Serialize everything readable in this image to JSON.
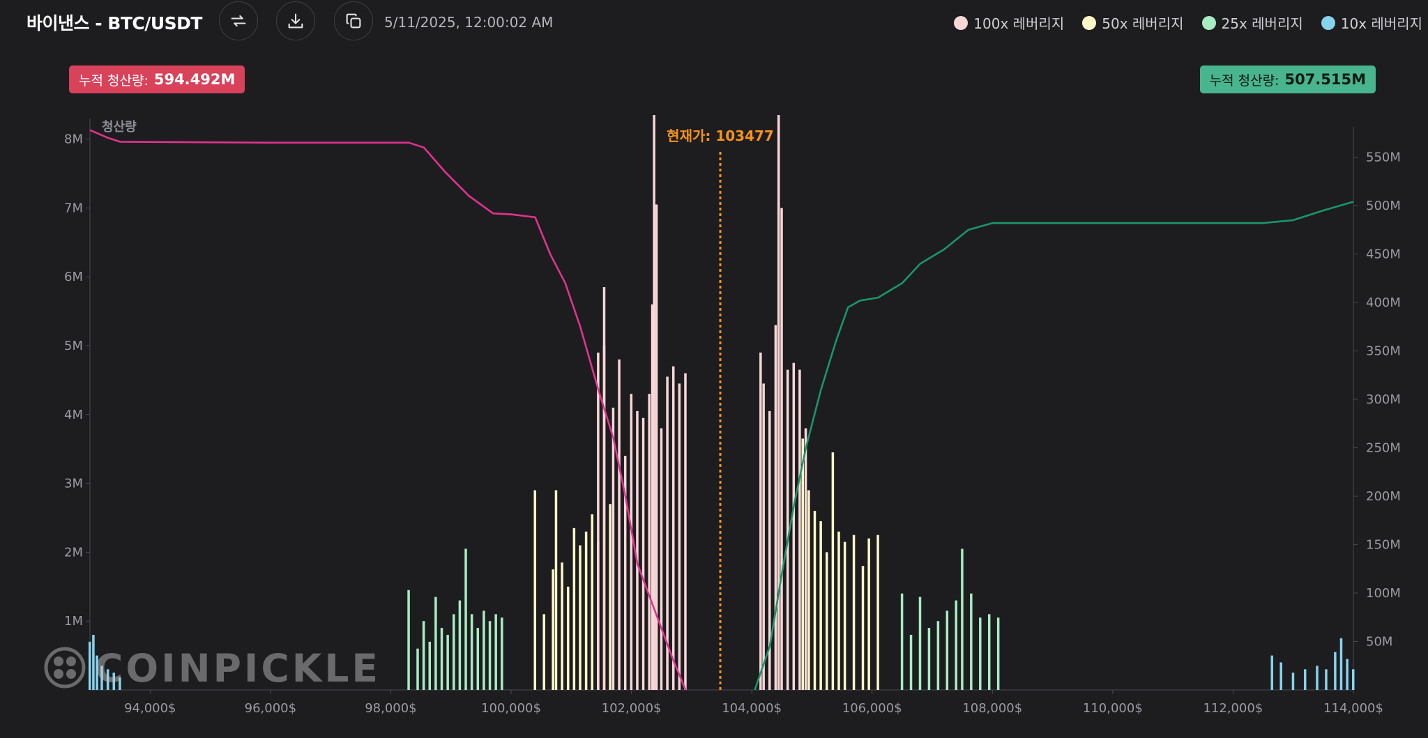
{
  "header": {
    "title": "바이낸스 - BTC/USDT",
    "timestamp": "5/11/2025, 12:00:02 AM",
    "buttons": [
      {
        "icon": "swap-icon"
      },
      {
        "icon": "download-icon"
      },
      {
        "icon": "copy-icon"
      }
    ]
  },
  "legend": [
    {
      "label": "100x 레버리지",
      "color": "#f8d7d7"
    },
    {
      "label": "50x 레버리지",
      "color": "#fbf7c8"
    },
    {
      "label": "25x 레버리지",
      "color": "#a8ecc2"
    },
    {
      "label": "10x 레버리지",
      "color": "#86d3ee"
    }
  ],
  "badges": {
    "short": {
      "label": "누적 청산량:",
      "value": "594.492M"
    },
    "long": {
      "label": "누적 청산량:",
      "value": "507.515M"
    }
  },
  "watermark": "COINPICKLE",
  "chart_data": {
    "type": "bar",
    "ylabel": "청산량",
    "current_price_label": "현재가: 103477",
    "current_price": 103477,
    "x_ticks": [
      "94,000$",
      "96,000$",
      "98,000$",
      "100,000$",
      "102,000$",
      "104,000$",
      "106,000$",
      "108,000$",
      "110,000$",
      "112,000$",
      "114,000$"
    ],
    "x_tick_values": [
      94000,
      96000,
      98000,
      100000,
      102000,
      104000,
      106000,
      108000,
      110000,
      112000,
      114000
    ],
    "xlim": [
      93000,
      114000
    ],
    "y_left_ticks": [
      "1M",
      "2M",
      "3M",
      "4M",
      "5M",
      "6M",
      "7M",
      "8M"
    ],
    "y_left_tick_values": [
      1000000,
      2000000,
      3000000,
      4000000,
      5000000,
      6000000,
      7000000,
      8000000
    ],
    "ylim_left": [
      0,
      8300000
    ],
    "y_right_ticks": [
      "50M",
      "100M",
      "150M",
      "200M",
      "250M",
      "300M",
      "350M",
      "400M",
      "450M",
      "500M",
      "550M"
    ],
    "y_right_tick_values": [
      50000000,
      100000000,
      150000000,
      200000000,
      250000000,
      300000000,
      350000000,
      400000000,
      450000000,
      500000000,
      550000000
    ],
    "ylim_right": [
      0,
      590000000
    ],
    "grid": false,
    "leverage_bars": [
      {
        "leverage": "10x",
        "color": "#86d3ee",
        "bars": [
          {
            "x": 93000,
            "y": 700000
          },
          {
            "x": 93060,
            "y": 800000
          },
          {
            "x": 93120,
            "y": 500000
          },
          {
            "x": 93200,
            "y": 350000
          },
          {
            "x": 93300,
            "y": 300000
          },
          {
            "x": 93400,
            "y": 250000
          },
          {
            "x": 93500,
            "y": 180000
          },
          {
            "x": 112650,
            "y": 500000
          },
          {
            "x": 112800,
            "y": 400000
          },
          {
            "x": 113000,
            "y": 250000
          },
          {
            "x": 113200,
            "y": 300000
          },
          {
            "x": 113400,
            "y": 350000
          },
          {
            "x": 113550,
            "y": 300000
          },
          {
            "x": 113700,
            "y": 550000
          },
          {
            "x": 113800,
            "y": 750000
          },
          {
            "x": 113900,
            "y": 450000
          },
          {
            "x": 114000,
            "y": 300000
          }
        ]
      },
      {
        "leverage": "25x",
        "color": "#a8ecc2",
        "bars": [
          {
            "x": 98300,
            "y": 1450000
          },
          {
            "x": 98450,
            "y": 600000
          },
          {
            "x": 98550,
            "y": 1000000
          },
          {
            "x": 98650,
            "y": 700000
          },
          {
            "x": 98750,
            "y": 1350000
          },
          {
            "x": 98850,
            "y": 900000
          },
          {
            "x": 98950,
            "y": 800000
          },
          {
            "x": 99050,
            "y": 1100000
          },
          {
            "x": 99150,
            "y": 1300000
          },
          {
            "x": 99250,
            "y": 2050000
          },
          {
            "x": 99350,
            "y": 1100000
          },
          {
            "x": 99450,
            "y": 900000
          },
          {
            "x": 99550,
            "y": 1150000
          },
          {
            "x": 99650,
            "y": 1000000
          },
          {
            "x": 99750,
            "y": 1100000
          },
          {
            "x": 99850,
            "y": 1050000
          },
          {
            "x": 106500,
            "y": 1400000
          },
          {
            "x": 106650,
            "y": 800000
          },
          {
            "x": 106800,
            "y": 1350000
          },
          {
            "x": 106950,
            "y": 900000
          },
          {
            "x": 107100,
            "y": 1000000
          },
          {
            "x": 107250,
            "y": 1150000
          },
          {
            "x": 107400,
            "y": 1300000
          },
          {
            "x": 107500,
            "y": 2050000
          },
          {
            "x": 107650,
            "y": 1400000
          },
          {
            "x": 107800,
            "y": 1050000
          },
          {
            "x": 107950,
            "y": 1100000
          },
          {
            "x": 108100,
            "y": 1050000
          }
        ]
      },
      {
        "leverage": "50x",
        "color": "#fbf7c8",
        "bars": [
          {
            "x": 100400,
            "y": 2900000
          },
          {
            "x": 100550,
            "y": 1100000
          },
          {
            "x": 100700,
            "y": 1750000
          },
          {
            "x": 100750,
            "y": 2900000
          },
          {
            "x": 100850,
            "y": 1850000
          },
          {
            "x": 100950,
            "y": 1500000
          },
          {
            "x": 101050,
            "y": 2350000
          },
          {
            "x": 101150,
            "y": 2100000
          },
          {
            "x": 101250,
            "y": 2300000
          },
          {
            "x": 101350,
            "y": 2550000
          },
          {
            "x": 101450,
            "y": 2150000
          },
          {
            "x": 101550,
            "y": 5000000
          },
          {
            "x": 101650,
            "y": 2700000
          },
          {
            "x": 104850,
            "y": 3650000
          },
          {
            "x": 104950,
            "y": 2900000
          },
          {
            "x": 105050,
            "y": 2600000
          },
          {
            "x": 105150,
            "y": 2450000
          },
          {
            "x": 105250,
            "y": 2000000
          },
          {
            "x": 105350,
            "y": 3450000
          },
          {
            "x": 105450,
            "y": 2300000
          },
          {
            "x": 105550,
            "y": 2150000
          },
          {
            "x": 105700,
            "y": 2250000
          },
          {
            "x": 105850,
            "y": 1800000
          },
          {
            "x": 105950,
            "y": 2200000
          },
          {
            "x": 106100,
            "y": 2250000
          }
        ]
      },
      {
        "leverage": "100x",
        "color": "#f8d7d7",
        "bars": [
          {
            "x": 101450,
            "y": 4900000
          },
          {
            "x": 101550,
            "y": 5850000
          },
          {
            "x": 101700,
            "y": 4100000
          },
          {
            "x": 101800,
            "y": 4800000
          },
          {
            "x": 101900,
            "y": 3400000
          },
          {
            "x": 102000,
            "y": 4300000
          },
          {
            "x": 102100,
            "y": 4050000
          },
          {
            "x": 102200,
            "y": 3950000
          },
          {
            "x": 102300,
            "y": 4300000
          },
          {
            "x": 102350,
            "y": 5600000
          },
          {
            "x": 102380,
            "y": 8350000
          },
          {
            "x": 102420,
            "y": 7050000
          },
          {
            "x": 102500,
            "y": 3800000
          },
          {
            "x": 102600,
            "y": 4550000
          },
          {
            "x": 102700,
            "y": 4700000
          },
          {
            "x": 102800,
            "y": 4450000
          },
          {
            "x": 102900,
            "y": 4600000
          },
          {
            "x": 104150,
            "y": 4900000
          },
          {
            "x": 104200,
            "y": 4450000
          },
          {
            "x": 104300,
            "y": 4050000
          },
          {
            "x": 104400,
            "y": 5300000
          },
          {
            "x": 104450,
            "y": 8350000
          },
          {
            "x": 104500,
            "y": 7000000
          },
          {
            "x": 104600,
            "y": 4650000
          },
          {
            "x": 104700,
            "y": 4750000
          },
          {
            "x": 104800,
            "y": 4650000
          },
          {
            "x": 104900,
            "y": 3800000
          }
        ]
      }
    ],
    "cumulative_short": {
      "color": "#e0338e",
      "x": [
        93000,
        93300,
        93500,
        96000,
        98300,
        98550,
        98900,
        99300,
        99700,
        100000,
        100400,
        100650,
        100900,
        101150,
        101450,
        101700,
        101900,
        102100,
        102400,
        102700,
        102900
      ],
      "y": [
        578000000,
        570000000,
        566000000,
        565000000,
        565000000,
        560000000,
        535000000,
        510000000,
        492000000,
        491000000,
        488000000,
        450000000,
        420000000,
        375000000,
        310000000,
        260000000,
        200000000,
        130000000,
        80000000,
        30000000,
        0
      ]
    },
    "cumulative_long": {
      "color": "#1a9669",
      "x": [
        104050,
        104300,
        104500,
        104700,
        104900,
        105150,
        105400,
        105600,
        105800,
        106100,
        106500,
        106800,
        107200,
        107600,
        108000,
        110000,
        112500,
        113000,
        113500,
        114000
      ],
      "y": [
        0,
        45000000,
        120000000,
        190000000,
        250000000,
        310000000,
        360000000,
        395000000,
        402000000,
        405000000,
        420000000,
        440000000,
        455000000,
        475000000,
        482000000,
        482000000,
        482000000,
        485000000,
        495000000,
        504000000
      ]
    }
  }
}
